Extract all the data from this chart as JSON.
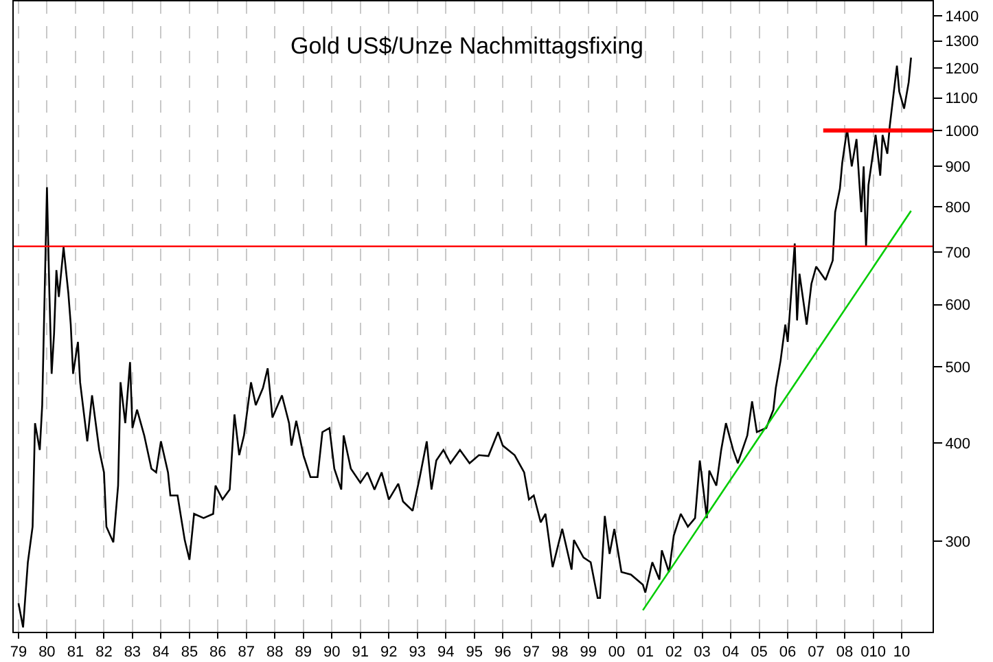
{
  "chart_data": {
    "type": "line",
    "title": "Gold US$/Unze Nachmittagsfixing",
    "log": "y",
    "grid": "x",
    "xlim": [
      "1978-11",
      "2011-02"
    ],
    "ylim": [
      230,
      1460
    ],
    "xticks": [
      {
        "value": "1979-01-01",
        "label": "79"
      },
      {
        "value": "1980-01-01",
        "label": "80"
      },
      {
        "value": "1981-01-01",
        "label": "81"
      },
      {
        "value": "1982-01-01",
        "label": "82"
      },
      {
        "value": "1983-01-01",
        "label": "83"
      },
      {
        "value": "1984-01-01",
        "label": "84"
      },
      {
        "value": "1985-01-01",
        "label": "85"
      },
      {
        "value": "1986-01-01",
        "label": "86"
      },
      {
        "value": "1987-01-01",
        "label": "87"
      },
      {
        "value": "1988-01-01",
        "label": "88"
      },
      {
        "value": "1989-01-01",
        "label": "89"
      },
      {
        "value": "1990-01-01",
        "label": "90"
      },
      {
        "value": "1991-01-01",
        "label": "91"
      },
      {
        "value": "1992-01-01",
        "label": "92"
      },
      {
        "value": "1993-01-01",
        "label": "93"
      },
      {
        "value": "1994-01-01",
        "label": "94"
      },
      {
        "value": "1995-01-01",
        "label": "95"
      },
      {
        "value": "1996-01-01",
        "label": "96"
      },
      {
        "value": "1997-01-01",
        "label": "97"
      },
      {
        "value": "1998-01-01",
        "label": "98"
      },
      {
        "value": "1999-01-01",
        "label": "99"
      },
      {
        "value": "2000-01-01",
        "label": "00"
      },
      {
        "value": "2001-01-01",
        "label": "01"
      },
      {
        "value": "2002-01-01",
        "label": "02"
      },
      {
        "value": "2003-01-01",
        "label": "03"
      },
      {
        "value": "2004-01-01",
        "label": "04"
      },
      {
        "value": "2005-01-01",
        "label": "05"
      },
      {
        "value": "2006-01-01",
        "label": "06"
      },
      {
        "value": "2007-01-01",
        "label": "07"
      },
      {
        "value": "2008-01-01",
        "label": "08"
      },
      {
        "value": "2009-01-01",
        "label": "010"
      },
      {
        "value": "2010-01-01",
        "label": "10"
      }
    ],
    "yticks": [
      300,
      400,
      500,
      600,
      700,
      800,
      900,
      1000,
      1100,
      1200,
      1300,
      1400
    ],
    "ref_lines": [
      {
        "axis": "y",
        "value": 712,
        "color": "#ff0000"
      }
    ],
    "series": [
      {
        "color": "#000000",
        "x": [
          "1979-01",
          "1979-03",
          "1979-05",
          "1979-07",
          "1979-08",
          "1979-10",
          "1979-11",
          "1980-01",
          "1980-02",
          "1980-03",
          "1980-04",
          "1980-05",
          "1980-06",
          "1980-08",
          "1980-10",
          "1980-11",
          "1980-12",
          "1981-02",
          "1981-03",
          "1981-06",
          "1981-08",
          "1981-11",
          "1982-01",
          "1982-02",
          "1982-05",
          "1982-07",
          "1982-08",
          "1982-10",
          "1982-12",
          "1983-01",
          "1983-03",
          "1983-06",
          "1983-09",
          "1983-11",
          "1984-01",
          "1984-04",
          "1984-05",
          "1984-08",
          "1984-11",
          "1985-01",
          "1985-03",
          "1985-07",
          "1985-11",
          "1985-12",
          "1986-03",
          "1986-06",
          "1986-08",
          "1986-10",
          "1986-12",
          "1987-03",
          "1987-05",
          "1987-08",
          "1987-10",
          "1987-12",
          "1988-04",
          "1988-07",
          "1988-08",
          "1988-10",
          "1989-01",
          "1989-04",
          "1989-07",
          "1989-09",
          "1989-12",
          "1990-02",
          "1990-05",
          "1990-06",
          "1990-09",
          "1991-01",
          "1991-04",
          "1991-07",
          "1991-10",
          "1992-01",
          "1992-05",
          "1992-07",
          "1992-11",
          "1993-02",
          "1993-05",
          "1993-07",
          "1993-09",
          "1993-12",
          "1994-03",
          "1994-07",
          "1994-11",
          "1995-03",
          "1995-07",
          "1995-11",
          "1996-01",
          "1996-06",
          "1996-10",
          "1996-12",
          "1997-02",
          "1997-05",
          "1997-07",
          "1997-10",
          "1998-02",
          "1998-06",
          "1998-07",
          "1998-11",
          "1999-02",
          "1999-05",
          "1999-06",
          "1999-08",
          "1999-10",
          "1999-12",
          "2000-03",
          "2000-07",
          "2000-12",
          "2001-01",
          "2001-04",
          "2001-07",
          "2001-08",
          "2001-11",
          "2002-01",
          "2002-04",
          "2002-07",
          "2002-10",
          "2002-12",
          "2003-03",
          "2003-04",
          "2003-07",
          "2003-09",
          "2003-11",
          "2004-02",
          "2004-04",
          "2004-08",
          "2004-10",
          "2004-12",
          "2005-04",
          "2005-07",
          "2005-08",
          "2005-10",
          "2005-12",
          "2006-01",
          "2006-04",
          "2006-05",
          "2006-06",
          "2006-09",
          "2006-11",
          "2007-01",
          "2007-05",
          "2007-08",
          "2007-09",
          "2007-11",
          "2007-12",
          "2008-02",
          "2008-04",
          "2008-06",
          "2008-08",
          "2008-09",
          "2008-10",
          "2008-11",
          "2009-02",
          "2009-04",
          "2009-05",
          "2009-07",
          "2009-08",
          "2009-11",
          "2009-12",
          "2010-02",
          "2010-04",
          "2010-05"
        ],
        "values": [
          250,
          233,
          282,
          313,
          424,
          392,
          447,
          847,
          621,
          490,
          551,
          664,
          614,
          710,
          621,
          566,
          490,
          538,
          478,
          402,
          460,
          392,
          367,
          313,
          299,
          353,
          478,
          424,
          507,
          418,
          441,
          409,
          371,
          367,
          402,
          367,
          343,
          343,
          301,
          284,
          325,
          321,
          325,
          353,
          339,
          349,
          435,
          386,
          409,
          478,
          447,
          470,
          498,
          431,
          460,
          424,
          397,
          427,
          386,
          362,
          362,
          413,
          418,
          371,
          349,
          409,
          371,
          356,
          367,
          349,
          367,
          339,
          355,
          337,
          328,
          362,
          402,
          349,
          380,
          392,
          377,
          392,
          377,
          386,
          385,
          413,
          397,
          386,
          367,
          339,
          343,
          317,
          325,
          278,
          311,
          276,
          301,
          286,
          282,
          254,
          254,
          323,
          289,
          311,
          274,
          272,
          264,
          258,
          282,
          268,
          292,
          274,
          305,
          325,
          313,
          321,
          380,
          321,
          369,
          353,
          392,
          424,
          392,
          377,
          409,
          452,
          413,
          418,
          441,
          470,
          509,
          566,
          538,
          718,
          573,
          657,
          566,
          638,
          671,
          645,
          683,
          787,
          843,
          910,
          1004,
          900,
          975,
          787,
          900,
          712,
          852,
          987,
          876,
          987,
          934,
          1013,
          1209,
          1121,
          1066,
          1152,
          1238
        ]
      },
      {
        "color": "#00cc00",
        "x": [
          "2000-12",
          "2010-05"
        ],
        "values": [
          245,
          790
        ]
      },
      {
        "color": "#ff0000",
        "x": [
          "2007-04",
          "2011-02"
        ],
        "values": [
          1000,
          1000
        ]
      }
    ]
  }
}
